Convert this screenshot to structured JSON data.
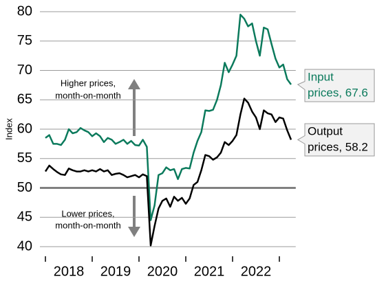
{
  "chart_data": {
    "type": "line",
    "y_label": "Index",
    "x": [
      2018.0,
      2018.083,
      2018.167,
      2018.25,
      2018.333,
      2018.417,
      2018.5,
      2018.583,
      2018.667,
      2018.75,
      2018.833,
      2018.917,
      2019.0,
      2019.083,
      2019.167,
      2019.25,
      2019.333,
      2019.417,
      2019.5,
      2019.583,
      2019.667,
      2019.75,
      2019.833,
      2019.917,
      2020.0,
      2020.083,
      2020.167,
      2020.25,
      2020.333,
      2020.417,
      2020.5,
      2020.583,
      2020.667,
      2020.75,
      2020.833,
      2020.917,
      2021.0,
      2021.083,
      2021.167,
      2021.25,
      2021.333,
      2021.417,
      2021.5,
      2021.583,
      2021.667,
      2021.75,
      2021.833,
      2021.917,
      2022.0,
      2022.083,
      2022.167,
      2022.25,
      2022.333,
      2022.417,
      2022.5,
      2022.583,
      2022.667,
      2022.75,
      2022.833,
      2022.917,
      2023.0,
      2023.083,
      2023.167,
      2023.25
    ],
    "series": [
      {
        "name": "Input prices",
        "color": "#0b7a5c",
        "end_label": [
          "Input",
          "prices, 67.6"
        ],
        "values": [
          58.5,
          59,
          57.5,
          57.5,
          57.3,
          58.2,
          60,
          59.3,
          59.5,
          60.2,
          59.8,
          59.5,
          58.8,
          59.3,
          58.8,
          57.8,
          58.5,
          58.2,
          57.5,
          57.8,
          58.2,
          57.5,
          58,
          57.3,
          57.2,
          58.2,
          57,
          44.5,
          47,
          52.2,
          52.5,
          53.5,
          53,
          53.2,
          51.5,
          53.2,
          53.4,
          53.3,
          56,
          58,
          59.5,
          63.2,
          63.1,
          63.3,
          65,
          67.5,
          71.3,
          69.7,
          71,
          72.5,
          79.5,
          78.8,
          77.5,
          78,
          75,
          72.5,
          77.3,
          77,
          74.5,
          72,
          70.5,
          71,
          68.5,
          67.6
        ]
      },
      {
        "name": "Output prices",
        "color": "#000000",
        "end_label": [
          "Output",
          "prices, 58.2"
        ],
        "values": [
          52.8,
          53.8,
          53.2,
          52.7,
          52.3,
          52.2,
          53.3,
          53,
          52.8,
          52.8,
          53,
          52.8,
          53,
          52.8,
          53.2,
          52.8,
          53,
          52.2,
          52.4,
          52.5,
          52.2,
          51.8,
          52,
          52.2,
          51.8,
          52.3,
          52,
          40.2,
          43.5,
          46.5,
          47.8,
          48.2,
          46.8,
          48.5,
          47.8,
          48.3,
          47.3,
          48.2,
          50.5,
          51,
          53,
          55.6,
          55.4,
          54.8,
          55.2,
          56,
          57.8,
          57.3,
          58,
          59,
          62.5,
          65.2,
          64.5,
          63,
          62,
          60,
          63.2,
          62.7,
          62.5,
          61.2,
          62,
          61.8,
          59.8,
          58.2
        ]
      }
    ],
    "xlim": [
      2017.95,
      2023.35
    ],
    "xticks": [
      {
        "value": 2018.5,
        "label": "2018"
      },
      {
        "value": 2019.5,
        "label": "2019"
      },
      {
        "value": 2020.5,
        "label": "2020"
      },
      {
        "value": 2021.5,
        "label": "2021"
      },
      {
        "value": 2022.5,
        "label": "2022"
      }
    ],
    "ylim": [
      40,
      80
    ],
    "yticks": [
      40,
      45,
      50,
      55,
      60,
      65,
      70,
      75,
      80
    ],
    "grid": true,
    "reference_line": 50,
    "annotations": [
      [
        "Higher prices,",
        "month-on-month"
      ],
      [
        "Lower prices,",
        "month-on-month"
      ]
    ]
  }
}
